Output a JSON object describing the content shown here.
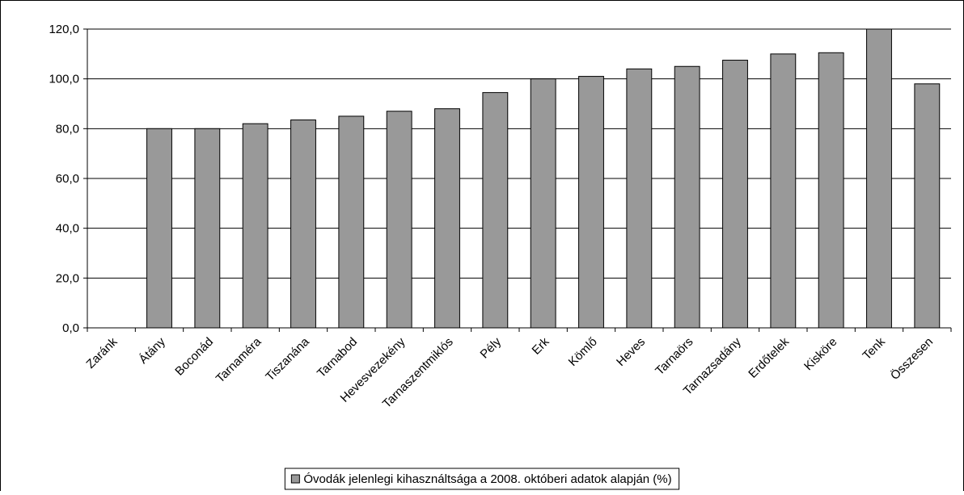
{
  "chart_data": {
    "type": "bar",
    "categories": [
      "Zaránk",
      "Átány",
      "Boconád",
      "Tarnaméra",
      "Tiszanána",
      "Tarnabod",
      "Hevesvezekény",
      "Tarnaszentmiklós",
      "Pély",
      "Erk",
      "Kömlő",
      "Heves",
      "Tarnaörs",
      "Tarnazsadány",
      "Erdőtelek",
      "Kisköre",
      "Tenk",
      "Összesen"
    ],
    "series": [
      {
        "name": "Óvodák jelenlegi kihasználtsága a 2008. októberi adatok alapján (%)",
        "color": "#999999",
        "values": [
          0,
          80,
          80,
          82,
          83.5,
          85,
          87,
          88,
          94.5,
          100,
          101,
          104,
          105,
          107.5,
          110,
          110.5,
          120,
          98
        ]
      }
    ],
    "ylim": [
      0,
      120
    ],
    "yticks": [
      {
        "value": 0,
        "label": "0,0"
      },
      {
        "value": 20,
        "label": "20,0"
      },
      {
        "value": 40,
        "label": "40,0"
      },
      {
        "value": 60,
        "label": "60,0"
      },
      {
        "value": 80,
        "label": "80,0"
      },
      {
        "value": 100,
        "label": "100,0"
      },
      {
        "value": 120,
        "label": "120,0"
      }
    ],
    "grid": true,
    "legend": "bottom"
  }
}
